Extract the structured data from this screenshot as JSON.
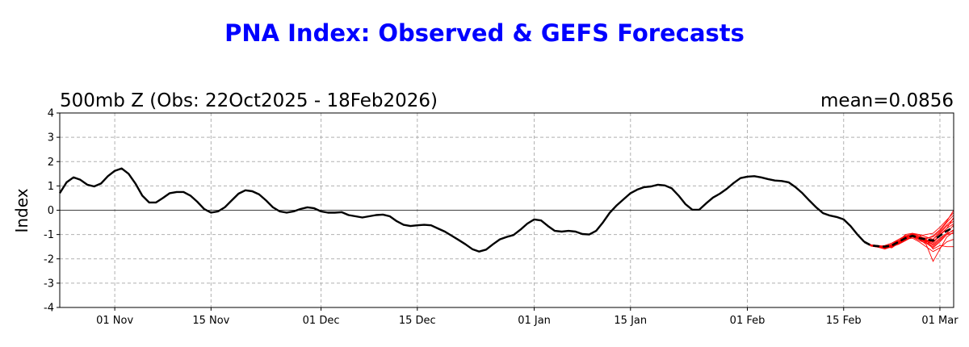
{
  "chart_data": {
    "type": "line",
    "title": "PNA Index: Observed & GEFS Forecasts",
    "subtitle": "500mb Z (Obs: 22Oct2025 - 18Feb2026)",
    "mean_text": "mean=0.0856",
    "ylabel": "Index",
    "xlabel": "",
    "ylim": [
      -4,
      4
    ],
    "yticks": [
      -4,
      -3,
      -2,
      -1,
      0,
      1,
      2,
      3,
      4
    ],
    "xlim": [
      "2025-10-24",
      "2026-03-03"
    ],
    "xticks": [
      {
        "date": "2025-11-01",
        "label": "01 Nov"
      },
      {
        "date": "2025-11-15",
        "label": "15 Nov"
      },
      {
        "date": "2025-12-01",
        "label": "01 Dec"
      },
      {
        "date": "2025-12-15",
        "label": "15 Dec"
      },
      {
        "date": "2026-01-01",
        "label": "01 Jan"
      },
      {
        "date": "2026-01-15",
        "label": "15 Jan"
      },
      {
        "date": "2026-02-01",
        "label": "01 Feb"
      },
      {
        "date": "2026-02-15",
        "label": "15 Feb"
      },
      {
        "date": "2026-03-01",
        "label": "01 Mar"
      }
    ],
    "grid": true,
    "zero_line": true,
    "colors": {
      "observed": "#000000",
      "members": "#ff0000",
      "ensemble_mean": "#000000",
      "title": "#0000ff"
    },
    "observed": {
      "x": [
        "2025-10-24",
        "2025-10-25",
        "2025-10-26",
        "2025-10-27",
        "2025-10-28",
        "2025-10-29",
        "2025-10-30",
        "2025-10-31",
        "2025-11-01",
        "2025-11-02",
        "2025-11-03",
        "2025-11-04",
        "2025-11-05",
        "2025-11-06",
        "2025-11-07",
        "2025-11-08",
        "2025-11-09",
        "2025-11-10",
        "2025-11-11",
        "2025-11-12",
        "2025-11-13",
        "2025-11-14",
        "2025-11-15",
        "2025-11-16",
        "2025-11-17",
        "2025-11-18",
        "2025-11-19",
        "2025-11-20",
        "2025-11-21",
        "2025-11-22",
        "2025-11-23",
        "2025-11-24",
        "2025-11-25",
        "2025-11-26",
        "2025-11-27",
        "2025-11-28",
        "2025-11-29",
        "2025-11-30",
        "2025-12-01",
        "2025-12-02",
        "2025-12-03",
        "2025-12-04",
        "2025-12-05",
        "2025-12-06",
        "2025-12-07",
        "2025-12-08",
        "2025-12-09",
        "2025-12-10",
        "2025-12-11",
        "2025-12-12",
        "2025-12-13",
        "2025-12-14",
        "2025-12-15",
        "2025-12-16",
        "2025-12-17",
        "2025-12-18",
        "2025-12-19",
        "2025-12-20",
        "2025-12-21",
        "2025-12-22",
        "2025-12-23",
        "2025-12-24",
        "2025-12-25",
        "2025-12-26",
        "2025-12-27",
        "2025-12-28",
        "2025-12-29",
        "2025-12-30",
        "2025-12-31",
        "2026-01-01",
        "2026-01-02",
        "2026-01-03",
        "2026-01-04",
        "2026-01-05",
        "2026-01-06",
        "2026-01-07",
        "2026-01-08",
        "2026-01-09",
        "2026-01-10",
        "2026-01-11",
        "2026-01-12",
        "2026-01-13",
        "2026-01-14",
        "2026-01-15",
        "2026-01-16",
        "2026-01-17",
        "2026-01-18",
        "2026-01-19",
        "2026-01-20",
        "2026-01-21",
        "2026-01-22",
        "2026-01-23",
        "2026-01-24",
        "2026-01-25",
        "2026-01-26",
        "2026-01-27",
        "2026-01-28",
        "2026-01-29",
        "2026-01-30",
        "2026-01-31",
        "2026-02-01",
        "2026-02-02",
        "2026-02-03",
        "2026-02-04",
        "2026-02-05",
        "2026-02-06",
        "2026-02-07",
        "2026-02-08",
        "2026-02-09",
        "2026-02-10",
        "2026-02-11",
        "2026-02-12",
        "2026-02-13",
        "2026-02-14",
        "2026-02-15",
        "2026-02-16",
        "2026-02-17",
        "2026-02-18"
      ],
      "y": [
        0.7,
        1.15,
        1.35,
        1.25,
        1.05,
        0.98,
        1.1,
        1.4,
        1.62,
        1.72,
        1.5,
        1.1,
        0.6,
        0.32,
        0.32,
        0.5,
        0.7,
        0.75,
        0.75,
        0.6,
        0.35,
        0.05,
        -0.1,
        -0.05,
        0.12,
        0.4,
        0.68,
        0.82,
        0.78,
        0.65,
        0.4,
        0.12,
        -0.05,
        -0.1,
        -0.05,
        0.05,
        0.12,
        0.08,
        -0.05,
        -0.1,
        -0.1,
        -0.08,
        -0.2,
        -0.25,
        -0.3,
        -0.25,
        -0.2,
        -0.18,
        -0.25,
        -0.45,
        -0.6,
        -0.65,
        -0.62,
        -0.6,
        -0.62,
        -0.75,
        -0.88,
        -1.05,
        -1.22,
        -1.4,
        -1.6,
        -1.7,
        -1.62,
        -1.4,
        -1.2,
        -1.1,
        -1.02,
        -0.8,
        -0.55,
        -0.38,
        -0.42,
        -0.65,
        -0.85,
        -0.88,
        -0.85,
        -0.88,
        -0.98,
        -1.0,
        -0.85,
        -0.5,
        -0.1,
        0.2,
        0.45,
        0.7,
        0.85,
        0.95,
        0.98,
        1.05,
        1.02,
        0.9,
        0.6,
        0.25,
        0.02,
        0.02,
        0.28,
        0.52,
        0.68,
        0.88,
        1.12,
        1.32,
        1.38,
        1.4,
        1.35,
        1.28,
        1.22,
        1.2,
        1.15,
        0.95,
        0.7,
        0.4,
        0.12,
        -0.12,
        -0.22,
        -0.28,
        -0.38,
        -0.65,
        -1.0,
        -1.3
      ]
    },
    "forecast_start": "2026-02-18",
    "ensemble_mean": {
      "x": [
        "2026-02-18",
        "2026-02-19",
        "2026-02-20",
        "2026-02-21",
        "2026-02-22",
        "2026-02-23",
        "2026-02-24",
        "2026-02-25",
        "2026-02-26",
        "2026-02-27",
        "2026-02-28",
        "2026-03-01",
        "2026-03-02",
        "2026-03-03"
      ],
      "y": [
        -1.3,
        -1.45,
        -1.48,
        -1.5,
        -1.45,
        -1.3,
        -1.15,
        -1.05,
        -1.15,
        -1.2,
        -1.25,
        -1.05,
        -0.85,
        -0.7
      ]
    },
    "members": [
      {
        "y": [
          -1.3,
          -1.42,
          -1.45,
          -1.5,
          -1.55,
          -1.35,
          -1.1,
          -0.95,
          -1.0,
          -1.1,
          -1.2,
          -0.9,
          -0.6,
          -0.35
        ]
      },
      {
        "y": [
          -1.3,
          -1.45,
          -1.5,
          -1.52,
          -1.4,
          -1.2,
          -1.05,
          -1.1,
          -1.25,
          -1.35,
          -1.55,
          -1.3,
          -1.0,
          -0.8
        ]
      },
      {
        "y": [
          -1.3,
          -1.48,
          -1.52,
          -1.6,
          -1.5,
          -1.28,
          -1.0,
          -0.95,
          -1.05,
          -1.0,
          -0.95,
          -0.7,
          -0.4,
          -0.1
        ]
      },
      {
        "y": [
          -1.3,
          -1.43,
          -1.46,
          -1.48,
          -1.42,
          -1.32,
          -1.2,
          -1.15,
          -1.3,
          -1.5,
          -1.7,
          -1.55,
          -1.3,
          -1.2
        ]
      },
      {
        "y": [
          -1.3,
          -1.46,
          -1.49,
          -1.55,
          -1.5,
          -1.4,
          -1.25,
          -1.1,
          -1.1,
          -1.25,
          -1.45,
          -1.2,
          -0.95,
          -0.6
        ]
      },
      {
        "y": [
          -1.3,
          -1.44,
          -1.47,
          -1.5,
          -1.46,
          -1.25,
          -1.12,
          -1.02,
          -1.2,
          -1.4,
          -2.1,
          -1.6,
          -1.1,
          -0.9
        ]
      },
      {
        "y": [
          -1.3,
          -1.47,
          -1.5,
          -1.45,
          -1.35,
          -1.2,
          -1.05,
          -1.0,
          -1.1,
          -1.15,
          -1.1,
          -0.85,
          -0.5,
          -0.2
        ]
      },
      {
        "y": [
          -1.3,
          -1.45,
          -1.48,
          -1.52,
          -1.48,
          -1.35,
          -1.2,
          -1.1,
          -1.15,
          -1.3,
          -1.3,
          -1.0,
          -0.75,
          -0.55
        ]
      },
      {
        "y": [
          -1.3,
          -1.46,
          -1.5,
          -1.5,
          -1.45,
          -1.3,
          -1.15,
          -1.05,
          -1.12,
          -1.22,
          -1.6,
          -1.45,
          -1.5,
          -1.5
        ]
      },
      {
        "y": [
          -1.3,
          -1.44,
          -1.46,
          -1.48,
          -1.4,
          -1.25,
          -1.08,
          -0.98,
          -1.05,
          -1.2,
          -1.35,
          -1.05,
          -0.75,
          -0.3
        ]
      },
      {
        "y": [
          -1.3,
          -1.45,
          -1.5,
          -1.55,
          -1.52,
          -1.38,
          -1.22,
          -1.1,
          -1.18,
          -1.28,
          -1.2,
          -0.95,
          -0.65,
          -0.45
        ]
      },
      {
        "y": [
          -1.3,
          -1.43,
          -1.47,
          -1.5,
          -1.45,
          -1.3,
          -1.15,
          -1.08,
          -1.2,
          -1.32,
          -1.5,
          -1.25,
          -1.0,
          -0.95
        ]
      },
      {
        "y": [
          -1.3,
          -1.47,
          -1.52,
          -1.58,
          -1.48,
          -1.32,
          -1.18,
          -1.02,
          -1.1,
          -1.18,
          -1.05,
          -0.8,
          -0.45,
          0.0
        ]
      },
      {
        "y": [
          -1.3,
          -1.45,
          -1.49,
          -1.5,
          -1.44,
          -1.28,
          -1.12,
          -1.05,
          -1.15,
          -1.25,
          -1.4,
          -1.15,
          -0.95,
          -0.85
        ]
      }
    ]
  }
}
